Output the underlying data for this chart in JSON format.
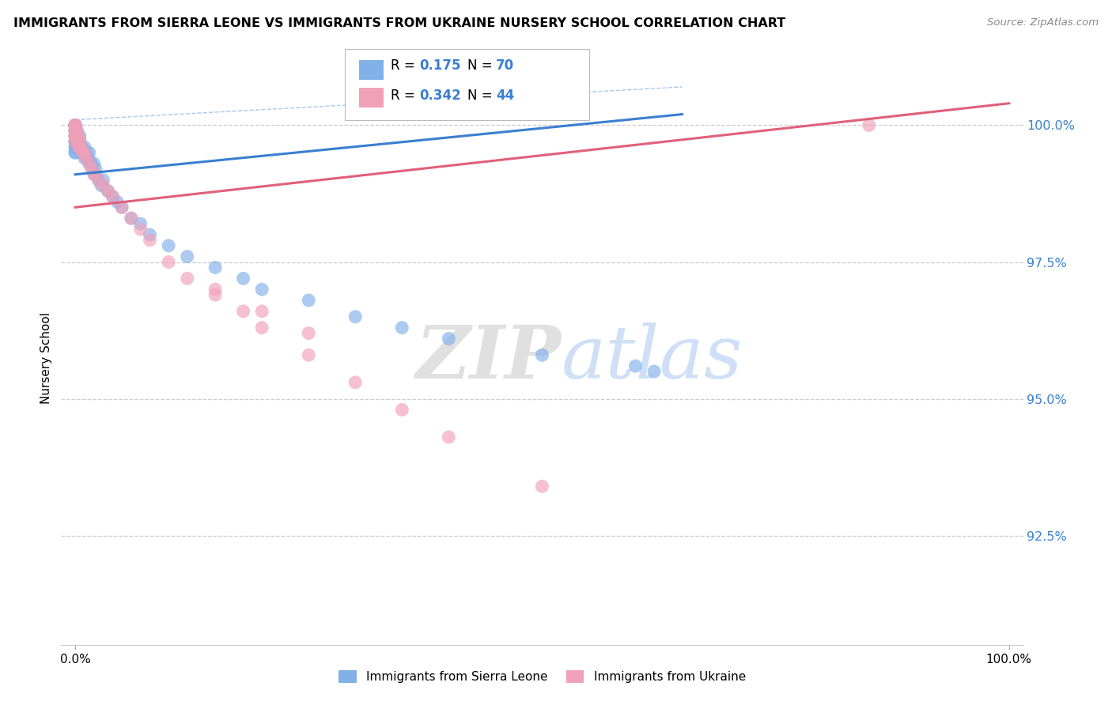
{
  "title": "IMMIGRANTS FROM SIERRA LEONE VS IMMIGRANTS FROM UKRAINE NURSERY SCHOOL CORRELATION CHART",
  "source": "Source: ZipAtlas.com",
  "ylabel": "Nursery School",
  "ytick_labels": [
    "92.5%",
    "95.0%",
    "97.5%",
    "100.0%"
  ],
  "ytick_values": [
    0.925,
    0.95,
    0.975,
    1.0
  ],
  "xlim": [
    0.0,
    1.0
  ],
  "ylim": [
    0.905,
    1.01
  ],
  "legend_R1": "0.175",
  "legend_N1": "70",
  "legend_R2": "0.342",
  "legend_N2": "44",
  "color_blue": "#82b0e8",
  "color_pink": "#f0a0b8",
  "line_color_blue": "#3a7fd0",
  "line_color_pink": "#e0607a",
  "watermark_zip": "ZIP",
  "watermark_atlas": "atlas",
  "sierra_leone_x": [
    0.0,
    0.0,
    0.0,
    0.0,
    0.0,
    0.0,
    0.0,
    0.0,
    0.0,
    0.0,
    0.0,
    0.0,
    0.0,
    0.0,
    0.0,
    0.0,
    0.0,
    0.0,
    0.0,
    0.0,
    0.002,
    0.002,
    0.003,
    0.003,
    0.004,
    0.004,
    0.005,
    0.005,
    0.006,
    0.006,
    0.007,
    0.008,
    0.009,
    0.01,
    0.01,
    0.012,
    0.013,
    0.014,
    0.015,
    0.015,
    0.017,
    0.018,
    0.02,
    0.021,
    0.022,
    0.025,
    0.028,
    0.03,
    0.035,
    0.04,
    0.045,
    0.05,
    0.06,
    0.07,
    0.08,
    0.1,
    0.12,
    0.15,
    0.18,
    0.2,
    0.25,
    0.3,
    0.35,
    0.4,
    0.5,
    0.6,
    0.62,
    0.001,
    0.001,
    0.001
  ],
  "sierra_leone_y": [
    1.0,
    1.0,
    1.0,
    1.0,
    1.0,
    1.0,
    1.0,
    1.0,
    0.999,
    0.999,
    0.999,
    0.998,
    0.998,
    0.997,
    0.997,
    0.997,
    0.996,
    0.996,
    0.995,
    0.995,
    0.999,
    0.998,
    0.998,
    0.997,
    0.997,
    0.996,
    0.998,
    0.997,
    0.996,
    0.995,
    0.996,
    0.995,
    0.995,
    0.996,
    0.994,
    0.995,
    0.994,
    0.994,
    0.995,
    0.993,
    0.993,
    0.992,
    0.993,
    0.991,
    0.992,
    0.99,
    0.989,
    0.99,
    0.988,
    0.987,
    0.986,
    0.985,
    0.983,
    0.982,
    0.98,
    0.978,
    0.976,
    0.974,
    0.972,
    0.97,
    0.968,
    0.965,
    0.963,
    0.961,
    0.958,
    0.956,
    0.955,
    0.999,
    0.998,
    0.997
  ],
  "ukraine_x": [
    0.0,
    0.0,
    0.0,
    0.0,
    0.0,
    0.0,
    0.0,
    0.0,
    0.002,
    0.003,
    0.004,
    0.005,
    0.006,
    0.008,
    0.01,
    0.012,
    0.015,
    0.018,
    0.02,
    0.025,
    0.03,
    0.035,
    0.04,
    0.05,
    0.06,
    0.07,
    0.08,
    0.1,
    0.12,
    0.15,
    0.18,
    0.2,
    0.25,
    0.3,
    0.35,
    0.4,
    0.5,
    0.85,
    0.002,
    0.003,
    0.004,
    0.15,
    0.2,
    0.25
  ],
  "ukraine_y": [
    1.0,
    1.0,
    1.0,
    0.999,
    0.999,
    0.998,
    0.998,
    0.997,
    0.999,
    0.998,
    0.997,
    0.997,
    0.996,
    0.995,
    0.995,
    0.994,
    0.993,
    0.992,
    0.991,
    0.99,
    0.989,
    0.988,
    0.987,
    0.985,
    0.983,
    0.981,
    0.979,
    0.975,
    0.972,
    0.969,
    0.966,
    0.963,
    0.958,
    0.953,
    0.948,
    0.943,
    0.934,
    1.0,
    0.998,
    0.997,
    0.996,
    0.97,
    0.966,
    0.962
  ]
}
